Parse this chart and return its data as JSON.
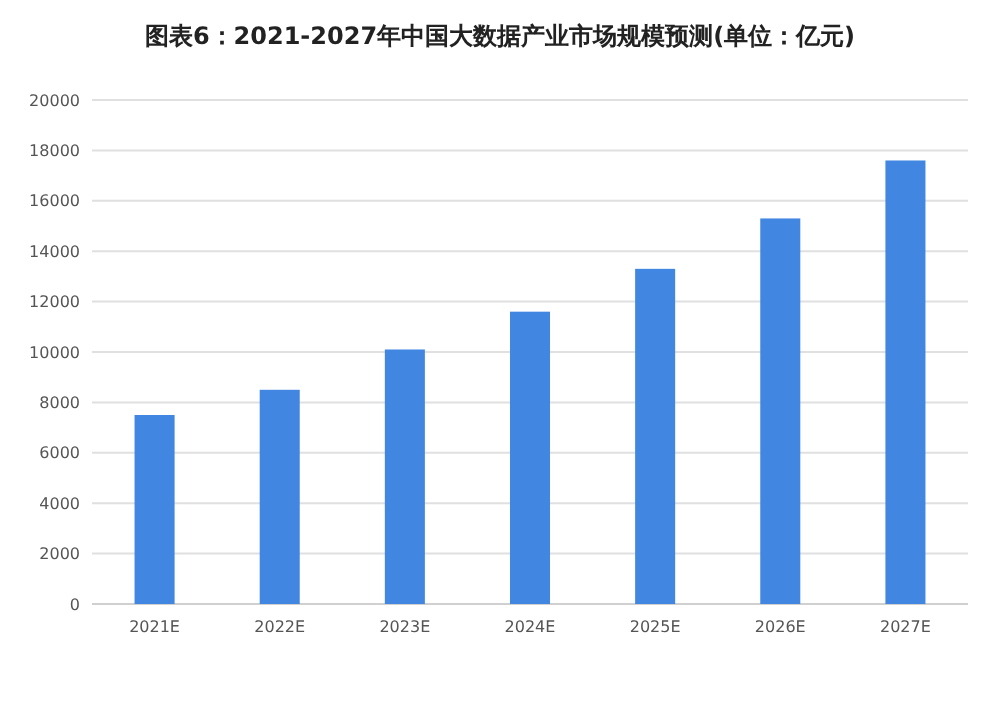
{
  "chart_data": {
    "type": "bar",
    "title": "图表6：2021-2027年中国大数据产业市场规模预测(单位：亿元)",
    "categories": [
      "2021E",
      "2022E",
      "2023E",
      "2024E",
      "2025E",
      "2026E",
      "2027E"
    ],
    "values": [
      7500,
      8500,
      10100,
      11600,
      13300,
      15300,
      17600
    ],
    "color": "#4187e2",
    "ylim": [
      0,
      20000
    ],
    "yticks": [
      0,
      2000,
      4000,
      6000,
      8000,
      10000,
      12000,
      14000,
      16000,
      18000,
      20000
    ],
    "grid": "y"
  }
}
